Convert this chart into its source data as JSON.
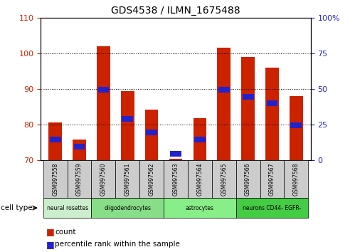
{
  "title": "GDS4538 / ILMN_1675488",
  "samples": [
    "GSM997558",
    "GSM997559",
    "GSM997560",
    "GSM997561",
    "GSM997562",
    "GSM997563",
    "GSM997564",
    "GSM997565",
    "GSM997566",
    "GSM997567",
    "GSM997568"
  ],
  "count_values": [
    80.5,
    75.8,
    102.0,
    89.3,
    84.2,
    70.3,
    81.8,
    101.5,
    99.0,
    96.0,
    88.0
  ],
  "percentile_values": [
    14.5,
    9.5,
    49.5,
    29.0,
    19.5,
    4.5,
    14.5,
    49.5,
    44.5,
    40.0,
    24.5
  ],
  "ymin": 70,
  "ymax": 110,
  "yticks_left": [
    70,
    80,
    90,
    100,
    110
  ],
  "yticks_right": [
    0,
    25,
    50,
    75,
    100
  ],
  "yright_labels": [
    "0",
    "25",
    "50",
    "75",
    "100%"
  ],
  "groups": [
    {
      "label": "neural rosettes",
      "start": 0,
      "end": 2,
      "color": "#cceecc"
    },
    {
      "label": "oligodendrocytes",
      "start": 2,
      "end": 5,
      "color": "#88dd88"
    },
    {
      "label": "astrocytes",
      "start": 5,
      "end": 8,
      "color": "#88ee88"
    },
    {
      "label": "neurons CD44- EGFR-",
      "start": 8,
      "end": 11,
      "color": "#44cc44"
    }
  ],
  "bar_color_red": "#cc2200",
  "bar_color_blue": "#2222cc",
  "gray_box": "#cccccc",
  "tick_color_left": "#cc2200",
  "tick_color_right": "#2222cc"
}
